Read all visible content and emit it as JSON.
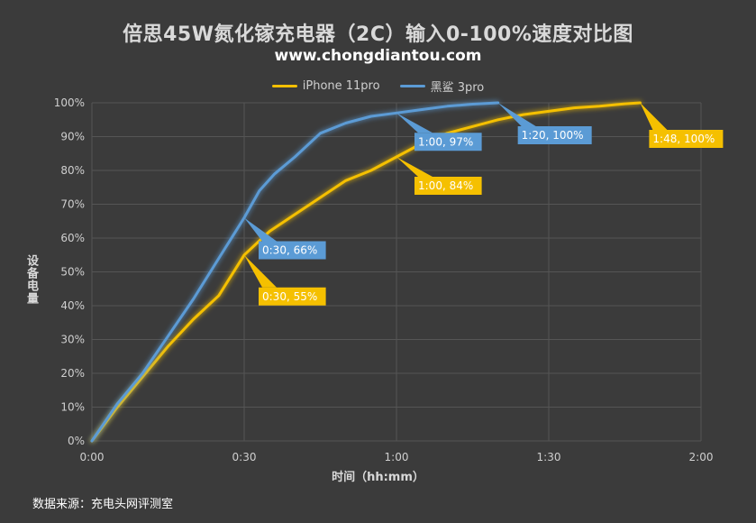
{
  "title": "倍思45W氮化镓充电器（2C）输入0-100%速度对比图",
  "subtitle": "www.chongdiantou.com",
  "source": "数据来源：充电头网评测室",
  "chart_data": {
    "type": "line",
    "title": "倍思45W氮化镓充电器（2C）输入0-100%速度对比图",
    "subtitle": "www.chongdiantou.com",
    "xlabel": "时间（hh:mm）",
    "ylabel": "设备电量",
    "x_ticks": [
      "0:00",
      "0:30",
      "1:00",
      "1:30",
      "2:00"
    ],
    "y_ticks": [
      "0%",
      "10%",
      "20%",
      "30%",
      "40%",
      "50%",
      "60%",
      "70%",
      "80%",
      "90%",
      "100%"
    ],
    "xlim_minutes": [
      0,
      120
    ],
    "ylim": [
      0,
      100
    ],
    "grid": true,
    "legend_position": "top",
    "series": [
      {
        "name": "iPhone 11pro",
        "color": "#f5c000",
        "x_minutes": [
          0,
          5,
          10,
          15,
          20,
          25,
          30,
          35,
          40,
          45,
          50,
          55,
          60,
          65,
          70,
          75,
          80,
          85,
          90,
          95,
          100,
          105,
          108
        ],
        "values": [
          0,
          10,
          19,
          28,
          36,
          43,
          55,
          62,
          67,
          72,
          77,
          80,
          84,
          88,
          91,
          93,
          95,
          96.5,
          97.5,
          98.5,
          99,
          99.7,
          100
        ]
      },
      {
        "name": "黑鲨 3pro",
        "color": "#5b9bd5",
        "x_minutes": [
          0,
          5,
          10,
          15,
          20,
          25,
          30,
          33,
          36,
          40,
          45,
          50,
          55,
          60,
          65,
          70,
          75,
          80
        ],
        "values": [
          0,
          11,
          20,
          31,
          42,
          54,
          66,
          74,
          79,
          84,
          91,
          94,
          96,
          97,
          98,
          99,
          99.6,
          100
        ]
      }
    ],
    "annotations": [
      {
        "series": "iPhone 11pro",
        "label": "0:30, 55%",
        "x_minutes": 30,
        "y": 55
      },
      {
        "series": "iPhone 11pro",
        "label": "1:00, 84%",
        "x_minutes": 60,
        "y": 84
      },
      {
        "series": "iPhone 11pro",
        "label": "1:48, 100%",
        "x_minutes": 108,
        "y": 100
      },
      {
        "series": "黑鲨 3pro",
        "label": "0:30, 66%",
        "x_minutes": 30,
        "y": 66
      },
      {
        "series": "黑鲨 3pro",
        "label": "1:00, 97%",
        "x_minutes": 60,
        "y": 97
      },
      {
        "series": "黑鲨 3pro",
        "label": "1:20, 100%",
        "x_minutes": 80,
        "y": 100
      }
    ]
  }
}
